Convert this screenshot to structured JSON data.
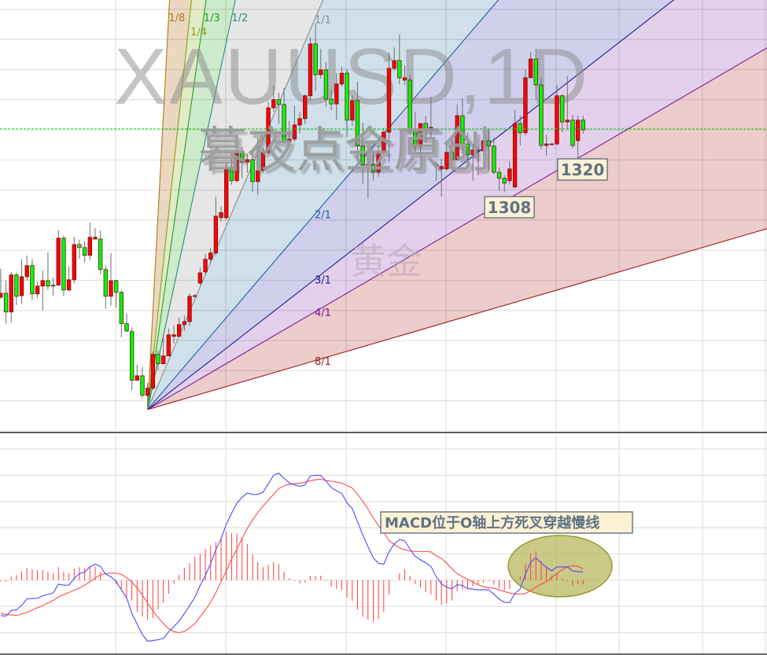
{
  "watermarks": {
    "symbol": "XAUUSD,1D",
    "author": "暮夜点金原创",
    "subtitle": "黄金"
  },
  "chart_data": [
    {
      "type": "candlestick",
      "ylim": [
        1230,
        1373.1
      ],
      "grid": true,
      "up_color": "#ff0000",
      "down_color": "#00ff00",
      "ohlc": [
        [
          1274.4,
          1283.8,
          1273.9,
          1275.7
        ],
        [
          1275.7,
          1279.9,
          1265.6,
          1269.5
        ],
        [
          1269.5,
          1282.8,
          1266.1,
          1281.8
        ],
        [
          1281.8,
          1282.5,
          1271.8,
          1274.7
        ],
        [
          1274.9,
          1287.0,
          1272.1,
          1281.2
        ],
        [
          1281.2,
          1288.3,
          1279.9,
          1284.9
        ],
        [
          1284.9,
          1287.0,
          1273.4,
          1275.5
        ],
        [
          1275.5,
          1279.7,
          1274.2,
          1278.1
        ],
        [
          1278.1,
          1283.3,
          1270.0,
          1279.9
        ],
        [
          1279.9,
          1289.3,
          1276.8,
          1278.1
        ],
        [
          1278.4,
          1281.0,
          1274.9,
          1278.1
        ],
        [
          1278.4,
          1296.6,
          1278.4,
          1294.0
        ],
        [
          1294.0,
          1294.8,
          1274.7,
          1276.8
        ],
        [
          1276.8,
          1284.6,
          1276.3,
          1280.2
        ],
        [
          1280.2,
          1294.5,
          1278.9,
          1291.9
        ],
        [
          1291.9,
          1293.5,
          1287.2,
          1290.9
        ],
        [
          1290.9,
          1293.0,
          1285.9,
          1288.3
        ],
        [
          1288.3,
          1299.2,
          1286.7,
          1294.3
        ],
        [
          1293.7,
          1297.4,
          1293.7,
          1294.3
        ],
        [
          1293.7,
          1296.6,
          1282.0,
          1283.6
        ],
        [
          1283.6,
          1285.1,
          1270.5,
          1274.7
        ],
        [
          1274.7,
          1289.1,
          1271.6,
          1279.9
        ],
        [
          1279.9,
          1280.2,
          1271.0,
          1276.0
        ],
        [
          1276.0,
          1276.8,
          1261.1,
          1265.6
        ],
        [
          1265.6,
          1269.0,
          1262.7,
          1263.2
        ],
        [
          1263.0,
          1264.3,
          1243.6,
          1246.8
        ],
        [
          1246.8,
          1252.0,
          1246.8,
          1248.3
        ],
        [
          1248.3,
          1251.2,
          1240.8,
          1241.8
        ],
        [
          1241.8,
          1246.0,
          1237.1,
          1244.2
        ],
        [
          1244.2,
          1256.4,
          1243.6,
          1255.4
        ],
        [
          1255.4,
          1256.7,
          1250.2,
          1252.3
        ],
        [
          1252.3,
          1261.7,
          1252.3,
          1254.9
        ],
        [
          1254.9,
          1264.0,
          1254.9,
          1261.9
        ],
        [
          1261.4,
          1265.0,
          1259.0,
          1261.9
        ],
        [
          1261.4,
          1267.7,
          1261.1,
          1265.3
        ],
        [
          1265.3,
          1268.4,
          1263.2,
          1266.3
        ],
        [
          1266.3,
          1275.7,
          1264.8,
          1274.7
        ],
        [
          1274.7,
          1275.5,
          1274.4,
          1274.9
        ],
        [
          1279.1,
          1284.4,
          1278.4,
          1282.5
        ],
        [
          1282.8,
          1288.8,
          1281.8,
          1287.0
        ],
        [
          1287.0,
          1290.9,
          1285.7,
          1289.1
        ],
        [
          1289.1,
          1307.8,
          1288.3,
          1301.3
        ],
        [
          1300.8,
          1304.5,
          1299.5,
          1302.5
        ],
        [
          1300.8,
          1319.1,
          1300.0,
          1317.5
        ],
        [
          1317.5,
          1321.4,
          1311.8,
          1313.1
        ],
        [
          1313.1,
          1325.9,
          1312.5,
          1322.7
        ],
        [
          1322.7,
          1324.3,
          1313.9,
          1319.3
        ],
        [
          1319.3,
          1321.9,
          1315.7,
          1320.1
        ],
        [
          1320.1,
          1323.3,
          1309.4,
          1312.8
        ],
        [
          1312.8,
          1327.4,
          1308.4,
          1316.5
        ],
        [
          1316.5,
          1324.0,
          1315.9,
          1322.5
        ],
        [
          1322.5,
          1339.4,
          1321.9,
          1337.3
        ],
        [
          1337.3,
          1344.7,
          1336.0,
          1340.0
        ],
        [
          1340.0,
          1342.3,
          1331.9,
          1338.4
        ],
        [
          1338.4,
          1343.9,
          1325.6,
          1326.1
        ],
        [
          1326.1,
          1332.9,
          1324.3,
          1326.9
        ],
        [
          1326.9,
          1337.9,
          1326.1,
          1331.6
        ],
        [
          1331.6,
          1336.0,
          1328.7,
          1333.7
        ],
        [
          1333.7,
          1341.8,
          1331.9,
          1341.3
        ],
        [
          1341.3,
          1360.8,
          1339.7,
          1358.5
        ],
        [
          1358.5,
          1365.3,
          1342.8,
          1348.3
        ],
        [
          1348.3,
          1356.9,
          1347.0,
          1349.9
        ],
        [
          1349.9,
          1352.5,
          1337.6,
          1340.2
        ],
        [
          1340.2,
          1343.3,
          1336.6,
          1338.6
        ],
        [
          1338.6,
          1348.8,
          1333.2,
          1345.2
        ],
        [
          1345.2,
          1350.9,
          1344.4,
          1348.8
        ],
        [
          1348.8,
          1350.1,
          1327.7,
          1333.2
        ],
        [
          1333.2,
          1341.5,
          1331.3,
          1339.7
        ],
        [
          1339.7,
          1346.0,
          1320.1,
          1324.6
        ],
        [
          1324.6,
          1332.4,
          1312.0,
          1318.3
        ],
        [
          1318.3,
          1320.9,
          1307.1,
          1318.5
        ],
        [
          1318.5,
          1322.7,
          1313.1,
          1315.9
        ],
        [
          1315.9,
          1324.8,
          1314.4,
          1322.5
        ],
        [
          1322.5,
          1330.6,
          1321.9,
          1329.2
        ],
        [
          1329.2,
          1355.6,
          1319.1,
          1350.4
        ],
        [
          1350.4,
          1357.4,
          1349.6,
          1353.0
        ],
        [
          1353.0,
          1361.6,
          1345.2,
          1347.3
        ],
        [
          1346.5,
          1351.4,
          1344.9,
          1347.3
        ],
        [
          1346.5,
          1348.3,
          1328.7,
          1329.5
        ],
        [
          1329.5,
          1336.0,
          1322.7,
          1324.3
        ],
        [
          1324.3,
          1332.1,
          1320.9,
          1332.1
        ],
        [
          1332.1,
          1334.5,
          1325.9,
          1329.8
        ],
        [
          1329.8,
          1341.0,
          1327.2,
          1330.8
        ],
        [
          1318.5,
          1319.6,
          1313.1,
          1318.0
        ],
        [
          1317.0,
          1320.4,
          1307.8,
          1317.8
        ],
        [
          1317.0,
          1325.3,
          1316.5,
          1322.5
        ],
        [
          1322.5,
          1327.7,
          1319.3,
          1320.1
        ],
        [
          1320.1,
          1338.4,
          1319.6,
          1334.7
        ],
        [
          1334.7,
          1340.5,
          1322.2,
          1325.3
        ],
        [
          1325.3,
          1329.0,
          1319.1,
          1321.7
        ],
        [
          1321.7,
          1325.3,
          1313.1,
          1323.3
        ],
        [
          1323.0,
          1324.3,
          1314.9,
          1323.2
        ],
        [
          1323.0,
          1328.2,
          1320.9,
          1326.4
        ],
        [
          1326.4,
          1330.0,
          1316.5,
          1324.6
        ],
        [
          1324.6,
          1327.4,
          1315.2,
          1315.9
        ],
        [
          1315.9,
          1317.5,
          1309.7,
          1313.9
        ],
        [
          1313.9,
          1314.9,
          1309.2,
          1312.3
        ],
        [
          1313.1,
          1319.6,
          1311.8,
          1317.0
        ],
        [
          1311.0,
          1336.6,
          1310.5,
          1332.1
        ],
        [
          1332.1,
          1334.7,
          1324.8,
          1329.0
        ],
        [
          1329.0,
          1350.1,
          1328.2,
          1347.3
        ],
        [
          1347.3,
          1355.9,
          1347.0,
          1353.5
        ],
        [
          1353.5,
          1356.9,
          1340.0,
          1344.9
        ],
        [
          1344.9,
          1347.0,
          1323.5,
          1324.8
        ],
        [
          1324.8,
          1328.2,
          1321.4,
          1325.3
        ],
        [
          1325.3,
          1325.5,
          1325.1,
          1325.3
        ],
        [
          1325.3,
          1344.9,
          1324.8,
          1341.3
        ],
        [
          1341.3,
          1341.8,
          1329.2,
          1332.6
        ],
        [
          1332.6,
          1348.0,
          1330.0,
          1333.2
        ],
        [
          1333.2,
          1335.0,
          1324.0,
          1324.8
        ],
        [
          1326.4,
          1334.7,
          1320.4,
          1333.2
        ],
        [
          1333.2,
          1334.7,
          1328.7,
          1330.0
        ]
      ],
      "horizontal_line": {
        "price": 1330.3,
        "color": "#00dd00",
        "style": "dashed"
      },
      "gann_fan": {
        "anchor_bar": 28,
        "anchor_price": 1237.1,
        "price_per_bar": 4.07,
        "lines": [
          {
            "label": "1/8",
            "ratio": 0.125,
            "color": "#b07818",
            "fill": "#ead9c0"
          },
          {
            "label": "1/4",
            "ratio": 0.25,
            "color": "#8aa010",
            "fill": "#e2ebc8"
          },
          {
            "label": "1/3",
            "ratio": 0.3333,
            "color": "#20a020",
            "fill": "#cdeacb"
          },
          {
            "label": "1/2",
            "ratio": 0.5,
            "color": "#20907a",
            "fill": "#e6e6e6"
          },
          {
            "label": "1/1",
            "ratio": 1,
            "color": "#8a8a8a",
            "fill": "#cfe0ea"
          },
          {
            "label": "2/1",
            "ratio": 2,
            "color": "#1f5fa0",
            "fill": "#d0d0ec"
          },
          {
            "label": "3/1",
            "ratio": 3,
            "color": "#1a1aa0",
            "fill": "#e3d1ec"
          },
          {
            "label": "4/1",
            "ratio": 4,
            "color": "#7a1a9a",
            "fill": "#edcccc"
          },
          {
            "label": "8/1",
            "ratio": 8,
            "color": "#a01a1a",
            "fill": ""
          }
        ]
      },
      "price_labels": [
        {
          "text": "1308",
          "price": 1308
        },
        {
          "text": "1320",
          "price": 1320
        }
      ]
    },
    {
      "type": "macd",
      "ylim": [
        -2.85,
        5.6
      ],
      "grid": true,
      "macd_color": "#4b4bff",
      "signal_color": "#ff4a4a",
      "histogram_color": "#ff3c3c",
      "histogram": [
        -0.05,
        -0.05,
        0.15,
        0.2,
        0.33,
        0.47,
        0.42,
        0.38,
        0.38,
        0.32,
        0.26,
        0.5,
        0.32,
        0.26,
        0.44,
        0.5,
        0.47,
        0.55,
        0.53,
        0.31,
        0,
        0,
        -0.15,
        -0.34,
        -0.64,
        -0.77,
        -1.2,
        -1.39,
        -1.5,
        -1.45,
        -1.12,
        -0.85,
        -0.51,
        -0.13,
        0.2,
        0.47,
        0.65,
        0.89,
        1.01,
        1.2,
        1.31,
        1.45,
        1.64,
        1.85,
        1.79,
        1.79,
        1.62,
        1.37,
        0.98,
        0.69,
        0.5,
        0.59,
        0.69,
        0.62,
        0.32,
        0.08,
        -0.03,
        -0.12,
        -0.09,
        0.17,
        0.17,
        0.17,
        -0.03,
        -0.25,
        -0.33,
        -0.37,
        -0.67,
        -0.79,
        -1.12,
        -1.39,
        -1.51,
        -1.59,
        -1.48,
        -1.2,
        -0.54,
        0,
        0.26,
        0.41,
        0.17,
        -0.15,
        -0.27,
        -0.45,
        -0.54,
        -0.78,
        -0.94,
        -0.88,
        -0.78,
        -0.42,
        -0.34,
        -0.3,
        -0.22,
        -0.17,
        -0.09,
        -0.03,
        -0.18,
        -0.3,
        -0.38,
        -0.34,
        0,
        0.15,
        0.63,
        1.01,
        1.12,
        0.74,
        0.48,
        0.18,
        0.23,
        0.08,
        -0.03,
        -0.21,
        -0.15,
        -0.17
      ],
      "macd_line": [
        -1.35,
        -1.37,
        -1.15,
        -1.13,
        -0.95,
        -0.71,
        -0.7,
        -0.69,
        -0.59,
        -0.54,
        -0.49,
        -0.15,
        -0.19,
        -0.19,
        0.07,
        0.25,
        0.31,
        0.51,
        0.61,
        0.53,
        0.23,
        0.13,
        -0.05,
        -0.37,
        -0.67,
        -1.27,
        -1.67,
        -2.07,
        -2.33,
        -2.3,
        -2.27,
        -2.22,
        -1.97,
        -1.77,
        -1.55,
        -1.27,
        -0.97,
        -0.65,
        -0.2,
        0.18,
        0.63,
        1.16,
        1.58,
        2.13,
        2.55,
        2.93,
        3.16,
        3.33,
        3.27,
        3.27,
        3.36,
        3.67,
        4.0,
        4.08,
        3.88,
        3.71,
        3.63,
        3.58,
        3.63,
        3.98,
        4.0,
        4.0,
        3.78,
        3.53,
        3.41,
        3.31,
        2.95,
        2.73,
        2.23,
        1.73,
        1.28,
        0.85,
        0.65,
        0.61,
        1.08,
        1.38,
        1.55,
        1.5,
        1.18,
        0.91,
        0.78,
        0.66,
        0.53,
        0.13,
        -0.14,
        -0.27,
        -0.33,
        -0.17,
        -0.2,
        -0.32,
        -0.34,
        -0.37,
        -0.36,
        -0.37,
        -0.53,
        -0.72,
        -0.84,
        -0.85,
        -0.5,
        -0.34,
        0.23,
        0.69,
        0.86,
        0.66,
        0.49,
        0.36,
        0.51,
        0.51,
        0.51,
        0.35,
        0.33,
        0.31
      ],
      "signal_line": [
        -1.27,
        -1.3,
        -1.32,
        -1.34,
        -1.29,
        -1.22,
        -1.14,
        -1.05,
        -0.97,
        -0.87,
        -0.77,
        -0.64,
        -0.55,
        -0.47,
        -0.38,
        -0.3,
        -0.19,
        -0.06,
        0.08,
        0.2,
        0.25,
        0.27,
        0.27,
        0.22,
        0.1,
        -0.07,
        -0.29,
        -0.57,
        -0.87,
        -1.17,
        -1.42,
        -1.65,
        -1.85,
        -1.96,
        -2.0,
        -1.95,
        -1.82,
        -1.65,
        -1.39,
        -1.14,
        -0.84,
        -0.47,
        -0.05,
        0.35,
        0.81,
        1.18,
        1.58,
        1.98,
        2.3,
        2.58,
        2.83,
        3.05,
        3.27,
        3.49,
        3.6,
        3.65,
        3.68,
        3.7,
        3.73,
        3.79,
        3.83,
        3.85,
        3.8,
        3.77,
        3.74,
        3.7,
        3.61,
        3.51,
        3.27,
        3.01,
        2.71,
        2.38,
        2.08,
        1.83,
        1.51,
        1.36,
        1.23,
        1.16,
        1.11,
        1.1,
        1.09,
        1.09,
        1.08,
        0.93,
        0.83,
        0.65,
        0.43,
        0.25,
        0.13,
        0.03,
        -0.07,
        -0.17,
        -0.25,
        -0.29,
        -0.31,
        -0.37,
        -0.43,
        -0.49,
        -0.53,
        -0.53,
        -0.51,
        -0.39,
        -0.27,
        -0.15,
        -0.05,
        0.11,
        0.25,
        0.4,
        0.51,
        0.55,
        0.53,
        0.43
      ],
      "annotation": {
        "text": "MACD位于O轴上方死叉穿越慢线"
      },
      "highlight_color": "#b5b55a"
    }
  ]
}
